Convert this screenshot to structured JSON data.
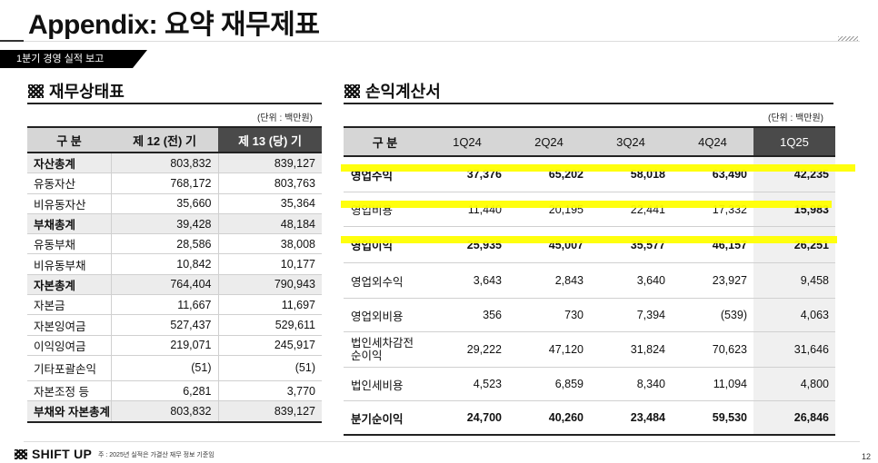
{
  "title": "Appendix: 요약 재무제표",
  "tag": "1분기 경영 실적 보고",
  "bs": {
    "heading": "재무상태표",
    "unit": "(단위 : 백만원)",
    "headers": [
      "구  분",
      "제 12 (전) 기",
      "제 13 (당) 기"
    ],
    "rows": [
      {
        "label": "자산총계",
        "prev": "803,832",
        "curr": "839,127",
        "type": "sum"
      },
      {
        "label": "유동자산",
        "prev": "768,172",
        "curr": "803,763",
        "type": ""
      },
      {
        "label": "비유동자산",
        "prev": "35,660",
        "curr": "35,364",
        "type": ""
      },
      {
        "label": "부채총계",
        "prev": "39,428",
        "curr": "48,184",
        "type": "sum"
      },
      {
        "label": "유동부채",
        "prev": "28,586",
        "curr": "38,008",
        "type": ""
      },
      {
        "label": "비유동부채",
        "prev": "10,842",
        "curr": "10,177",
        "type": ""
      },
      {
        "label": "자본총계",
        "prev": "764,404",
        "curr": "790,943",
        "type": "sum"
      },
      {
        "label": "자본금",
        "prev": "11,667",
        "curr": "11,697",
        "type": ""
      },
      {
        "label": "자본잉여금",
        "prev": "527,437",
        "curr": "529,611",
        "type": ""
      },
      {
        "label": "이익잉여금",
        "prev": "219,071",
        "curr": "245,917",
        "type": ""
      },
      {
        "label": "기타포괄손익",
        "prev": "(51)",
        "curr": "(51)",
        "type": "tall"
      },
      {
        "label": "자본조정 등",
        "prev": "6,281",
        "curr": "3,770",
        "type": ""
      },
      {
        "label": "부채와 자본총계",
        "prev": "803,832",
        "curr": "839,127",
        "type": "final"
      }
    ]
  },
  "is": {
    "heading": "손익계산서",
    "unit": "(단위 : 백만원)",
    "headers": [
      "구  분",
      "1Q24",
      "2Q24",
      "3Q24",
      "4Q24",
      "1Q25"
    ],
    "rows": [
      {
        "label": "영업수익",
        "values": [
          "37,376",
          "65,202",
          "58,018",
          "63,490",
          "42,235"
        ],
        "type": "hl"
      },
      {
        "label": "영업비용",
        "values": [
          "11,440",
          "20,195",
          "22,441",
          "17,332",
          "15,983"
        ],
        "type": "hlcost"
      },
      {
        "label": "영업이익",
        "values": [
          "25,935",
          "45,007",
          "35,577",
          "46,157",
          "26,251"
        ],
        "type": "hl"
      },
      {
        "label": "영업외수익",
        "values": [
          "3,643",
          "2,843",
          "3,640",
          "23,927",
          "9,458"
        ],
        "type": ""
      },
      {
        "label": "영업외비용",
        "values": [
          "356",
          "730",
          "7,394",
          "(539)",
          "4,063"
        ],
        "type": ""
      },
      {
        "label": "법인세차감전\n순이익",
        "values": [
          "29,222",
          "47,120",
          "31,824",
          "70,623",
          "31,646"
        ],
        "type": ""
      },
      {
        "label": "법인세비용",
        "values": [
          "4,523",
          "6,859",
          "8,340",
          "11,094",
          "4,800"
        ],
        "type": ""
      },
      {
        "label": "분기순이익",
        "values": [
          "24,700",
          "40,260",
          "23,484",
          "59,530",
          "26,846"
        ],
        "type": "final"
      }
    ]
  },
  "footer": {
    "logo": "SHIFT UP",
    "note": "주 : 2025년 실적은 가결산 재무 정보 기준임",
    "page": "12"
  }
}
